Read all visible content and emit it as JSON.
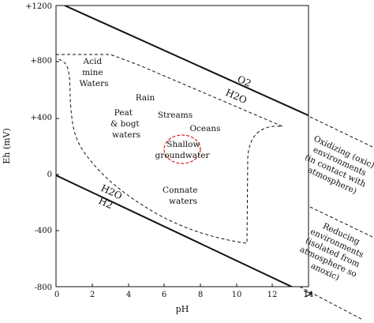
{
  "axes": {
    "xlabel": "pH",
    "ylabel": "Eh (mV)",
    "x_range": [
      0,
      14
    ],
    "y_range": [
      -800,
      1200
    ],
    "x_ticks": [
      "0",
      "2",
      "4",
      "6",
      "8",
      "10",
      "12",
      "14"
    ],
    "y_ticks": [
      "+1200",
      "+800",
      "+400",
      "0",
      "-400",
      "-800"
    ]
  },
  "boundary_lines": {
    "upper": {
      "label_top": "O2",
      "label_bottom": "H2O"
    },
    "lower": {
      "label_top": "H2O",
      "label_bottom": "H2"
    }
  },
  "environments": [
    {
      "id": "acid-mine",
      "lines": [
        "Acid",
        "mine",
        "Waters"
      ]
    },
    {
      "id": "rain",
      "lines": [
        "Rain"
      ]
    },
    {
      "id": "peat",
      "lines": [
        "Peat",
        "& bogt",
        "waters"
      ]
    },
    {
      "id": "streams",
      "lines": [
        "Streams"
      ]
    },
    {
      "id": "oceans",
      "lines": [
        "Oceans"
      ]
    },
    {
      "id": "shallow-groundwater",
      "lines": [
        "Shallow",
        "groundwater"
      ]
    },
    {
      "id": "connate",
      "lines": [
        "Connate",
        "waters"
      ]
    }
  ],
  "side_notes": {
    "oxidizing": [
      "Oxidizing (oxic)",
      "environments",
      "(in contact with",
      "atmosphere)"
    ],
    "reducing": [
      "Reducing",
      "environments",
      "(isolated from",
      "atmosphere so",
      "anoxic)"
    ]
  },
  "colors": {
    "line": "#111111",
    "highlight": "#d62728"
  }
}
